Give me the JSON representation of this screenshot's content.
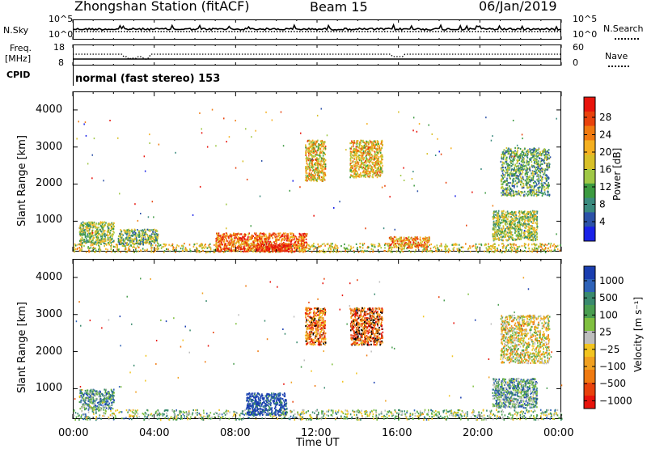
{
  "header": {
    "station": "Zhongshan Station (fitACF)",
    "beam": "Beam 15",
    "date": "06/Jan/2019"
  },
  "top_panels": {
    "nsky_label": "N.Sky",
    "nsky_ticks": [
      "10^5",
      "10^0"
    ],
    "nsearch_label": "N.Search",
    "nsearch_ticks": [
      "10^5",
      "10^0"
    ],
    "freq_label_line1": "Freq.",
    "freq_label_line2": "[MHz]",
    "freq_ticks": [
      "18",
      "8"
    ],
    "nave_label": "Nave",
    "nave_ticks": [
      "60",
      "0"
    ],
    "cpid_label": "CPID",
    "cpid_text": "normal (fast stereo) 153"
  },
  "power_panel": {
    "ylabel": "Slant Range [km]",
    "yticks": [
      "4000",
      "3000",
      "2000",
      "1000"
    ],
    "colorbar_label": "Power [dB]",
    "colorbar_ticks": [
      "28",
      "24",
      "20",
      "16",
      "12",
      "8",
      "4"
    ],
    "colors": [
      "#e8140c",
      "#e8420c",
      "#f07a10",
      "#f5b020",
      "#d8c028",
      "#a0c846",
      "#3c9a40",
      "#3a8a7e",
      "#2c52a8",
      "#1a22e8"
    ]
  },
  "velocity_panel": {
    "ylabel": "Slant Range [km]",
    "yticks": [
      "4000",
      "3000",
      "2000",
      "1000"
    ],
    "colorbar_label": "Velocity [m s⁻¹]",
    "colorbar_ticks": [
      "1000",
      "500",
      "100",
      "25",
      "−25",
      "−100",
      "−500",
      "−1000"
    ],
    "colors": [
      "#1a3eb0",
      "#2e62b8",
      "#3a8a6e",
      "#4a9e50",
      "#80c040",
      "#bdbdbd",
      "#f2c420",
      "#f0a020",
      "#f07a10",
      "#e8420c",
      "#e8140c"
    ]
  },
  "xaxis": {
    "ticks": [
      "00:00",
      "04:00",
      "08:00",
      "12:00",
      "16:00",
      "20:00",
      "00:00"
    ],
    "label": "Time UT"
  },
  "chart_data": [
    {
      "type": "heatmap",
      "name": "power",
      "xlabel": "Time UT",
      "ylabel": "Slant Range [km]",
      "xlim": [
        "00:00",
        "24:00"
      ],
      "ylim": [
        180,
        4500
      ],
      "colorbar": {
        "label": "Power [dB]",
        "range": [
          0,
          30
        ]
      },
      "regions": [
        {
          "t0": 0.0,
          "t1": 24.0,
          "r0": 180,
          "r1": 420,
          "level": 0.55
        },
        {
          "t0": 0.3,
          "t1": 2.0,
          "r0": 420,
          "r1": 1000,
          "level": 0.45
        },
        {
          "t0": 2.2,
          "t1": 4.2,
          "r0": 400,
          "r1": 800,
          "level": 0.4
        },
        {
          "t0": 7.0,
          "t1": 11.5,
          "r0": 200,
          "r1": 700,
          "level": 0.8
        },
        {
          "t0": 9.0,
          "t1": 10.6,
          "r0": 200,
          "r1": 420,
          "level": 1.0
        },
        {
          "t0": 11.4,
          "t1": 12.4,
          "r0": 2100,
          "r1": 3200,
          "level": 0.6
        },
        {
          "t0": 13.6,
          "t1": 15.2,
          "r0": 2200,
          "r1": 3200,
          "level": 0.6
        },
        {
          "t0": 15.5,
          "t1": 17.5,
          "r0": 300,
          "r1": 600,
          "level": 0.7
        },
        {
          "t0": 20.6,
          "t1": 22.8,
          "r0": 500,
          "r1": 1300,
          "level": 0.45
        },
        {
          "t0": 21.0,
          "t1": 23.4,
          "r0": 1700,
          "r1": 3000,
          "level": 0.35
        }
      ]
    },
    {
      "type": "heatmap",
      "name": "velocity",
      "xlabel": "Time UT",
      "ylabel": "Slant Range [km]",
      "xlim": [
        "00:00",
        "24:00"
      ],
      "ylim": [
        180,
        4500
      ],
      "colorbar": {
        "label": "Velocity [m s⁻¹]",
        "range": [
          -1000,
          1000
        ]
      },
      "regions": [
        {
          "t0": 0.0,
          "t1": 24.0,
          "r0": 180,
          "r1": 450,
          "level": 0.6
        },
        {
          "t0": 0.3,
          "t1": 2.0,
          "r0": 450,
          "r1": 1000,
          "level": 0.7
        },
        {
          "t0": 8.5,
          "t1": 10.5,
          "r0": 300,
          "r1": 900,
          "level": 0.95
        },
        {
          "t0": 11.4,
          "t1": 12.4,
          "r0": 2200,
          "r1": 3200,
          "level": 0.2
        },
        {
          "t0": 13.6,
          "t1": 15.2,
          "r0": 2200,
          "r1": 3200,
          "level": 0.15
        },
        {
          "t0": 20.6,
          "t1": 22.8,
          "r0": 500,
          "r1": 1300,
          "level": 0.7
        },
        {
          "t0": 21.0,
          "t1": 23.4,
          "r0": 1700,
          "r1": 3000,
          "level": 0.45
        }
      ]
    }
  ]
}
